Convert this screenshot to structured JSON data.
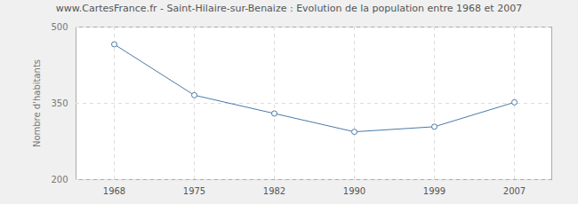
{
  "chart_data": {
    "type": "line",
    "title": "www.CartesFrance.fr - Saint-Hilaire-sur-Benaize : Evolution de la population entre 1968 et 2007",
    "y_label": "Nombre d'habitants",
    "categories": [
      "1968",
      "1975",
      "1982",
      "1990",
      "1999",
      "2007"
    ],
    "values": [
      466,
      366,
      330,
      294,
      304,
      352
    ],
    "color": "#4a7aa7",
    "marker": "circle",
    "ylim": [
      200,
      500
    ],
    "yticks": [
      200,
      350,
      500
    ],
    "grid": true
  }
}
